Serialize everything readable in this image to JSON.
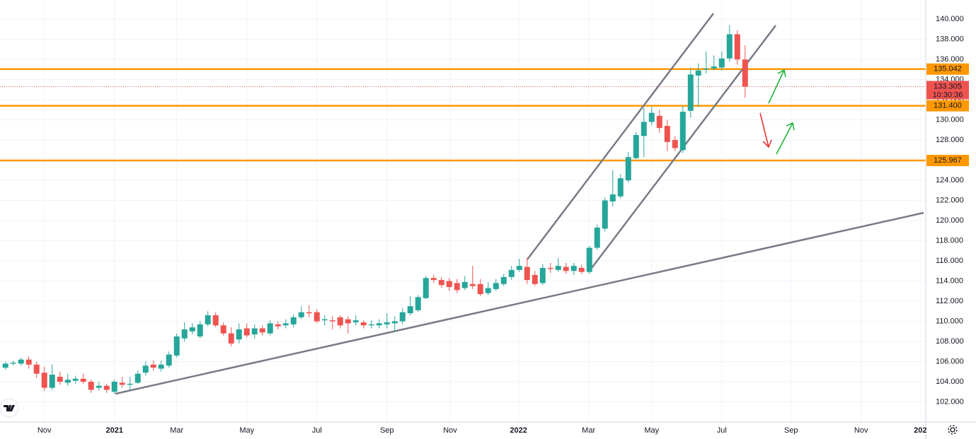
{
  "chart_data": {
    "type": "candlestick",
    "x": [
      0,
      1,
      2,
      3,
      4,
      5,
      6,
      7,
      8,
      9,
      10,
      11,
      12,
      13,
      14,
      15,
      16,
      17,
      18,
      19,
      20,
      21,
      22,
      23,
      24,
      25,
      26,
      27,
      28,
      29,
      30,
      31,
      32,
      33,
      34,
      35,
      36,
      37,
      38,
      39,
      40,
      41,
      42,
      43,
      44,
      45,
      46,
      47,
      48,
      49,
      50,
      51,
      52,
      53,
      54,
      55,
      56,
      57,
      58,
      59,
      60,
      61,
      62,
      63,
      64,
      65,
      66,
      67,
      68,
      69,
      70,
      71,
      72,
      73,
      74,
      75,
      76,
      77,
      78,
      79,
      80,
      81,
      82,
      83,
      84,
      85,
      86,
      87,
      88,
      89,
      90,
      91,
      92,
      93,
      94,
      95
    ],
    "open": [
      105.4,
      105.8,
      105.8,
      106.2,
      105.7,
      104.9,
      103.4,
      104.5,
      103.9,
      104.1,
      104.3,
      104.0,
      103.4,
      103.6,
      103.0,
      103.9,
      103.7,
      103.9,
      104.9,
      105.7,
      105.3,
      105.6,
      106.6,
      108.3,
      109.0,
      108.5,
      109.7,
      110.6,
      109.6,
      108.8,
      108.2,
      109.3,
      108.7,
      109.3,
      108.8,
      109.7,
      109.6,
      109.7,
      110.4,
      110.9,
      110.9,
      110.1,
      110.1,
      110.4,
      110.2,
      109.9,
      109.9,
      109.6,
      109.6,
      109.7,
      109.8,
      110.0,
      110.8,
      111.1,
      112.3,
      114.3,
      114.1,
      114.0,
      113.8,
      113.3,
      113.7,
      113.7,
      112.8,
      113.2,
      113.7,
      114.4,
      115.1,
      115.4,
      114.6,
      113.8,
      115.3,
      115.1,
      115.4,
      115.0,
      115.3,
      114.9,
      117.3,
      119.2,
      121.9,
      122.4,
      124.0,
      126.2,
      128.4,
      129.8,
      130.4,
      129.4,
      128.0,
      127.0,
      130.9,
      134.4,
      135.0,
      135.1,
      135.2,
      136.1,
      138.5,
      136.0
    ],
    "high": [
      106.0,
      106.1,
      106.4,
      106.5,
      106.0,
      105.5,
      105.7,
      105.0,
      104.8,
      104.6,
      104.8,
      104.2,
      104.0,
      103.8,
      104.2,
      104.5,
      104.5,
      105.1,
      106.0,
      106.1,
      106.1,
      107.0,
      108.8,
      109.9,
      109.8,
      110.0,
      111.0,
      110.9,
      109.9,
      109.4,
      109.8,
      109.8,
      109.7,
      109.6,
      110.1,
      110.0,
      110.2,
      110.7,
      111.5,
      111.6,
      111.2,
      110.6,
      110.5,
      110.6,
      110.5,
      110.6,
      110.1,
      110.1,
      110.2,
      110.8,
      110.5,
      111.3,
      112.5,
      112.6,
      114.5,
      114.6,
      114.4,
      114.3,
      114.2,
      114.5,
      115.5,
      114.2,
      113.9,
      114.2,
      114.7,
      115.5,
      116.2,
      116.3,
      115.0,
      115.7,
      115.8,
      116.3,
      115.8,
      115.8,
      115.6,
      117.5,
      119.6,
      122.3,
      125.0,
      124.6,
      126.8,
      128.8,
      131.2,
      131.3,
      131.0,
      130.0,
      128.4,
      131.4,
      135.2,
      135.6,
      136.8,
      136.4,
      136.8,
      139.4,
      138.9,
      137.4
    ],
    "low": [
      105.2,
      105.6,
      105.6,
      105.3,
      104.4,
      103.1,
      103.2,
      103.7,
      103.6,
      103.8,
      103.8,
      102.9,
      103.1,
      102.9,
      102.8,
      103.4,
      103.2,
      103.8,
      104.6,
      105.1,
      105.0,
      105.4,
      106.4,
      108.0,
      108.7,
      108.3,
      109.5,
      109.4,
      108.6,
      107.5,
      107.8,
      108.4,
      108.3,
      108.6,
      108.6,
      109.2,
      109.3,
      109.4,
      110.2,
      110.4,
      109.8,
      109.6,
      109.2,
      109.3,
      108.8,
      109.6,
      109.3,
      109.3,
      109.3,
      109.3,
      109.0,
      109.7,
      110.6,
      110.9,
      112.2,
      113.8,
      113.3,
      113.0,
      112.8,
      113.1,
      113.2,
      112.5,
      112.6,
      113.0,
      113.5,
      114.1,
      114.9,
      113.7,
      113.5,
      113.6,
      114.8,
      114.9,
      114.7,
      114.6,
      114.7,
      114.7,
      117.1,
      118.9,
      121.4,
      122.2,
      123.8,
      126.1,
      126.3,
      129.5,
      128.7,
      126.9,
      126.9,
      126.7,
      130.2,
      131.3,
      134.6,
      134.9,
      134.9,
      135.8,
      135.5,
      132.2
    ],
    "close": [
      105.8,
      105.9,
      106.2,
      105.7,
      104.8,
      103.4,
      104.7,
      104.0,
      104.2,
      104.3,
      104.0,
      103.2,
      103.6,
      103.2,
      104.0,
      103.7,
      103.8,
      104.8,
      105.6,
      105.4,
      105.7,
      106.7,
      108.5,
      109.2,
      109.4,
      109.7,
      110.6,
      109.6,
      108.8,
      107.8,
      109.2,
      108.6,
      109.3,
      108.9,
      109.8,
      109.5,
      109.8,
      110.4,
      110.9,
      110.8,
      110.0,
      110.2,
      110.0,
      109.6,
      109.8,
      110.1,
      109.6,
      109.7,
      109.8,
      109.9,
      110.0,
      110.9,
      111.5,
      112.4,
      114.3,
      114.1,
      113.6,
      113.4,
      113.1,
      113.9,
      113.5,
      112.7,
      113.3,
      113.8,
      114.4,
      115.1,
      115.5,
      114.1,
      113.7,
      115.3,
      115.2,
      115.5,
      115.0,
      115.5,
      114.9,
      117.3,
      119.3,
      122.0,
      122.6,
      124.2,
      126.3,
      128.5,
      129.8,
      130.7,
      129.2,
      127.8,
      127.2,
      130.8,
      134.5,
      134.9,
      135.1,
      135.3,
      136.1,
      138.5,
      136.0,
      133.3
    ],
    "up_color": "#26a69a",
    "down_color": "#ef5350",
    "xlim": [
      -0.7,
      118.2
    ],
    "xticks": [
      {
        "value": 5,
        "label": "Nov"
      },
      {
        "value": 14,
        "label": "2021"
      },
      {
        "value": 22,
        "label": "Mar"
      },
      {
        "value": 31,
        "label": "May"
      },
      {
        "value": 40,
        "label": "Jul"
      },
      {
        "value": 49,
        "label": "Sep"
      },
      {
        "value": 57.1,
        "label": "Nov"
      },
      {
        "value": 65.9,
        "label": "2022"
      },
      {
        "value": 74.9,
        "label": "Mar"
      },
      {
        "value": 83,
        "label": "May"
      },
      {
        "value": 92,
        "label": "Jul"
      },
      {
        "value": 100.9,
        "label": "Sep"
      },
      {
        "value": 109.9,
        "label": "Nov"
      },
      {
        "value": 117.5,
        "label": "202"
      }
    ],
    "ylim": [
      100,
      141.9
    ],
    "yticks": [
      {
        "value": 102,
        "label": "102.000"
      },
      {
        "value": 104,
        "label": "104.000"
      },
      {
        "value": 106,
        "label": "106.000"
      },
      {
        "value": 108,
        "label": "108.000"
      },
      {
        "value": 110,
        "label": "110.000"
      },
      {
        "value": 112,
        "label": "112.000"
      },
      {
        "value": 114,
        "label": "114.000"
      },
      {
        "value": 116,
        "label": "116.000"
      },
      {
        "value": 118,
        "label": "118.000"
      },
      {
        "value": 120,
        "label": "120.000"
      },
      {
        "value": 122,
        "label": "122.000"
      },
      {
        "value": 124,
        "label": "124.000"
      },
      {
        "value": 126,
        "label": "126.000"
      },
      {
        "value": 128,
        "label": "128.000"
      },
      {
        "value": 130,
        "label": "130.000"
      },
      {
        "value": 132,
        "label": "132.000"
      },
      {
        "value": 134,
        "label": "134.000"
      },
      {
        "value": 136,
        "label": "136.000"
      },
      {
        "value": 138,
        "label": "138.000"
      },
      {
        "value": 140,
        "label": "140.000"
      }
    ],
    "grid": true,
    "levels": [
      135.042,
      {
        "value": 131.4,
        "label": "131.400"
      },
      125.967
    ],
    "level_color": "#ff9800",
    "last_price": 133.305,
    "countdown": "10:30:36"
  }
}
